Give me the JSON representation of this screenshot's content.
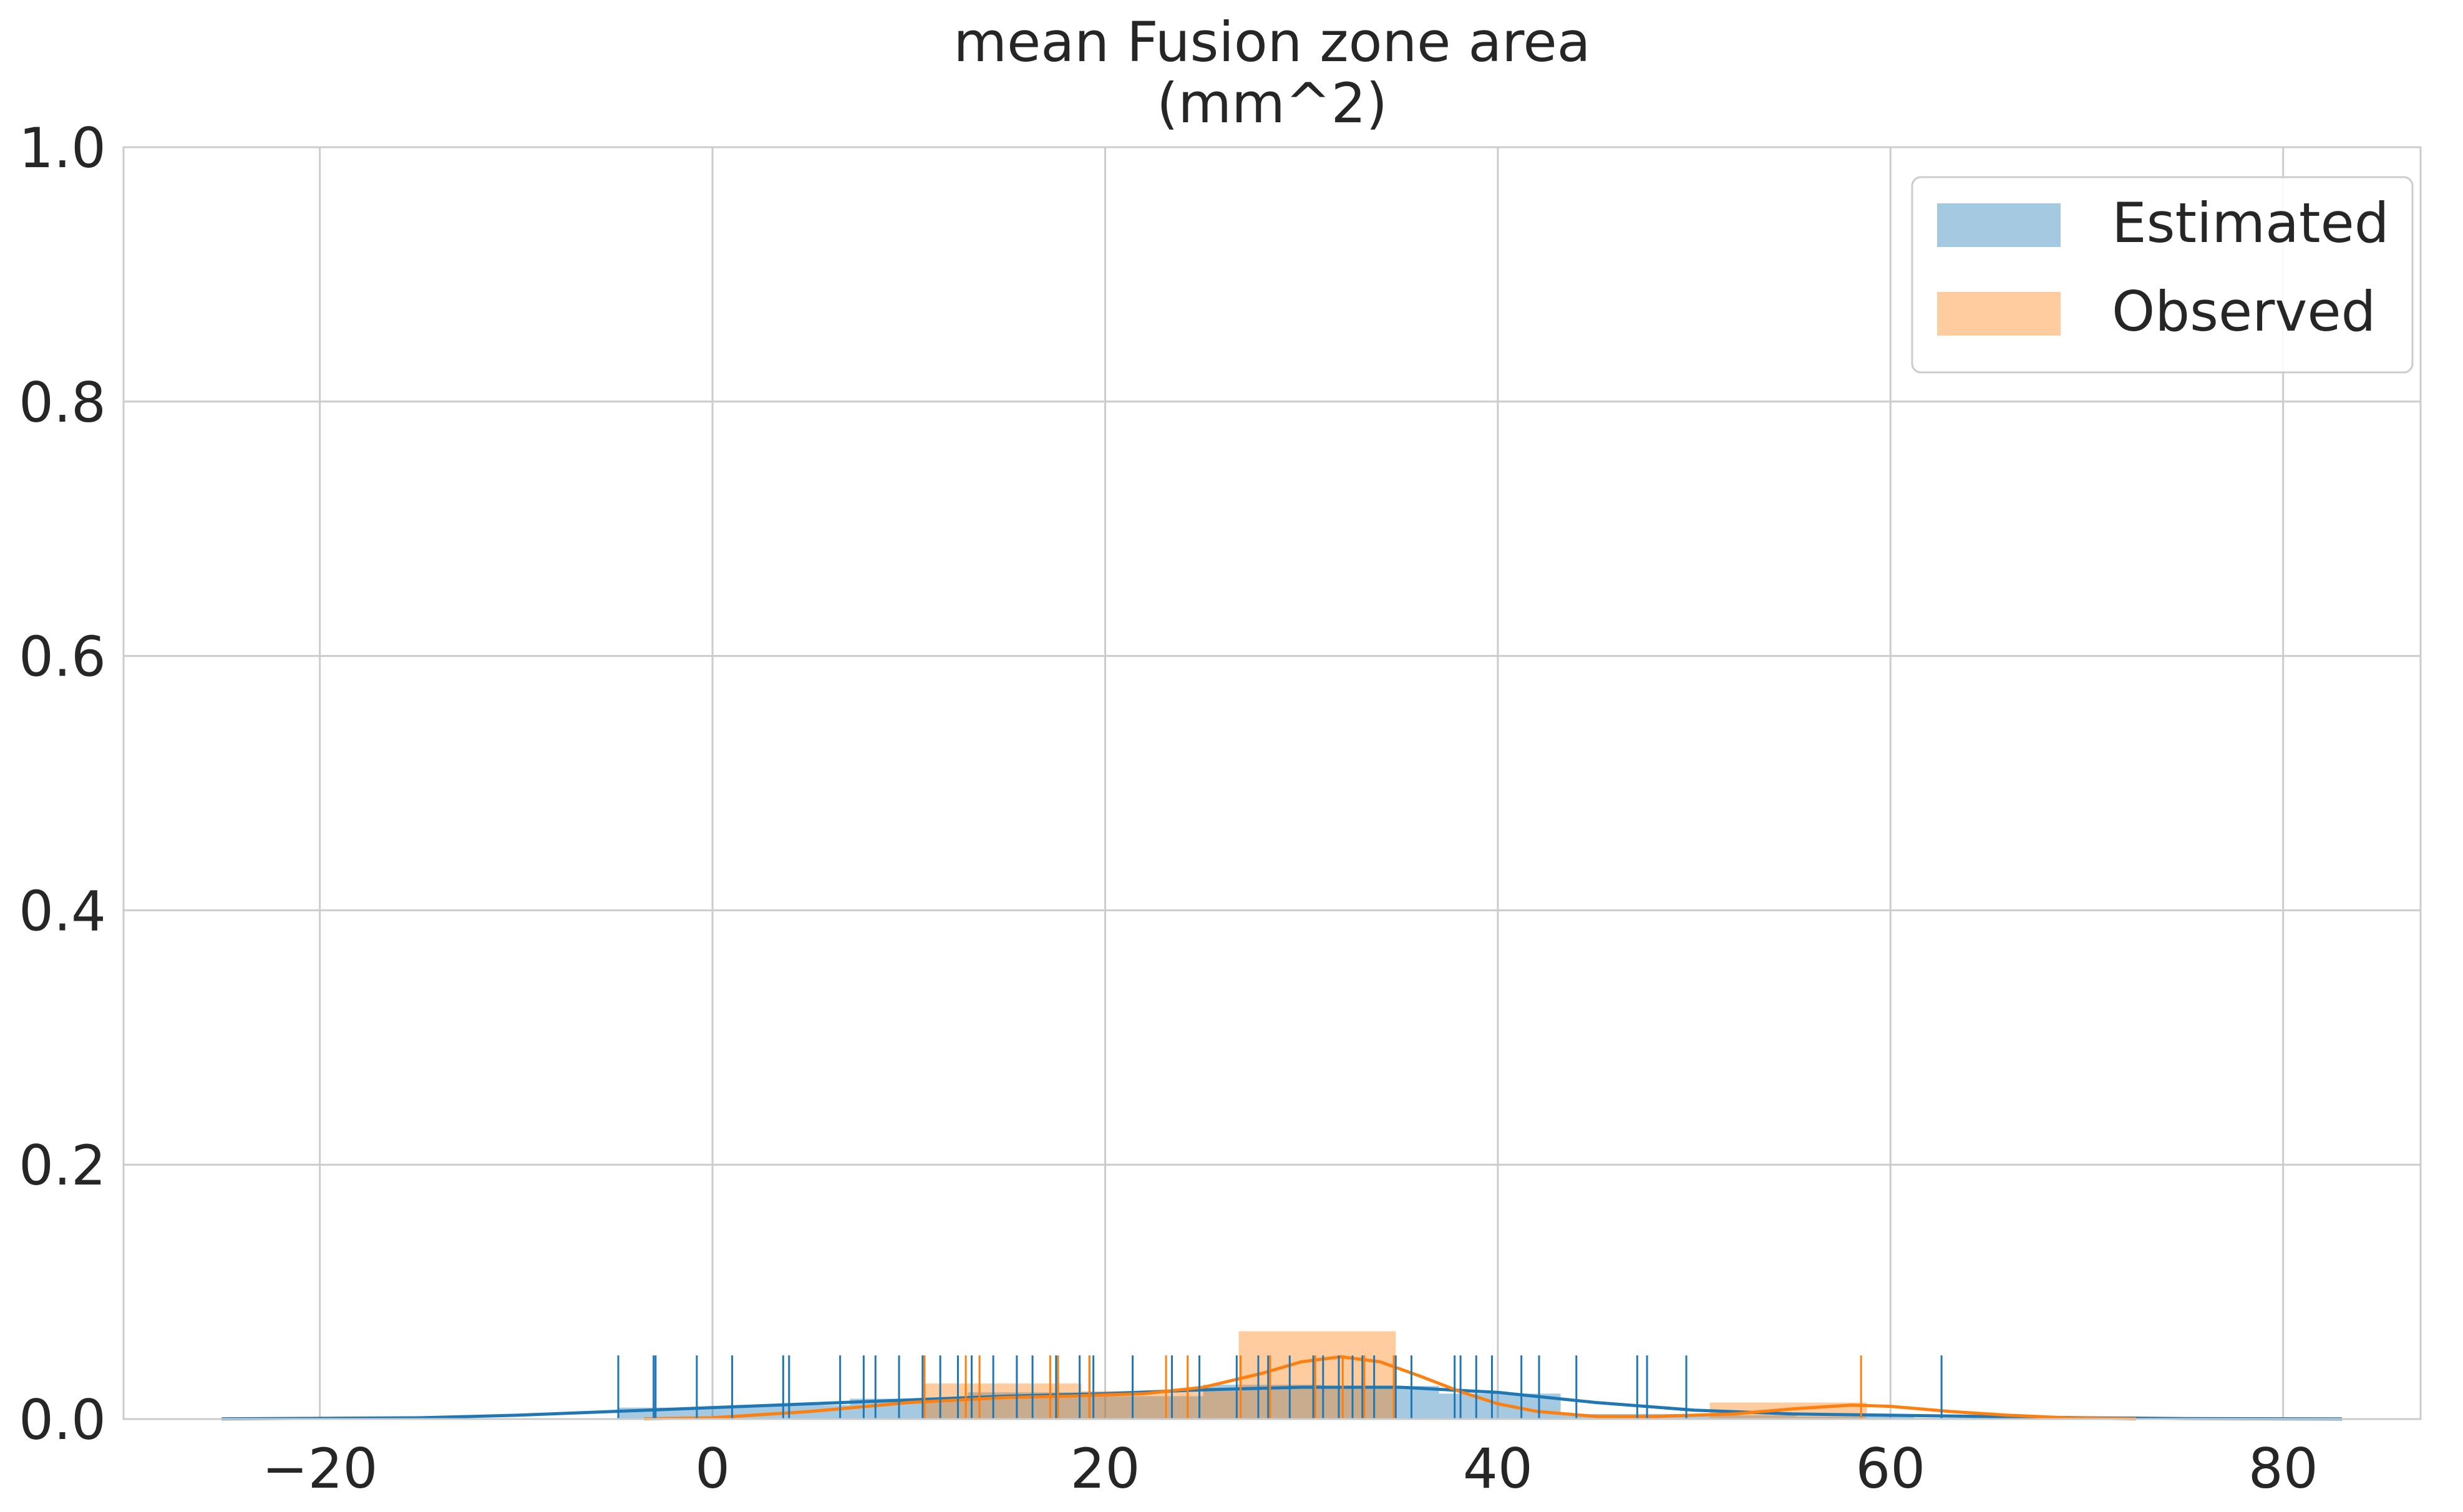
{
  "chart_data": {
    "type": "histogram",
    "title": "mean Fusion zone area\n(mm^2)",
    "xlabel": "",
    "ylabel": "",
    "xlim": [
      -30,
      87
    ],
    "ylim": [
      0,
      1.0
    ],
    "x_ticks": [
      -20,
      0,
      20,
      40,
      60,
      80
    ],
    "x_tick_labels": [
      "−20",
      "0",
      "20",
      "40",
      "60",
      "80"
    ],
    "y_ticks": [
      0.0,
      0.2,
      0.4,
      0.6,
      0.8,
      1.0
    ],
    "y_tick_labels": [
      "0.0",
      "0.2",
      "0.4",
      "0.6",
      "0.8",
      "1.0"
    ],
    "grid": true,
    "legend_position": "top-right",
    "legend": [
      "Estimated",
      "Observed"
    ],
    "series": [
      {
        "name": "Estimated",
        "color": "#1f77b4",
        "hist_bins": [
          {
            "x0": -4.8,
            "x1": 1.2,
            "density": 0.009
          },
          {
            "x0": 1.2,
            "x1": 7.0,
            "density": 0.011
          },
          {
            "x0": 7.0,
            "x1": 13.0,
            "density": 0.016
          },
          {
            "x0": 13.0,
            "x1": 19.0,
            "density": 0.021
          },
          {
            "x0": 19.0,
            "x1": 25.0,
            "density": 0.018
          },
          {
            "x0": 25.0,
            "x1": 31.0,
            "density": 0.027
          },
          {
            "x0": 31.0,
            "x1": 37.0,
            "density": 0.026
          },
          {
            "x0": 37.0,
            "x1": 43.2,
            "density": 0.02
          },
          {
            "x0": 43.2,
            "x1": 49.2,
            "density": 0.004
          },
          {
            "x0": 49.2,
            "x1": 55.2,
            "density": 0.003
          },
          {
            "x0": 55.2,
            "x1": 61.2,
            "density": 0.002
          },
          {
            "x0": 61.2,
            "x1": 67.2,
            "density": 0.001
          }
        ],
        "kde": {
          "x": [
            -25,
            -15,
            -10,
            -5,
            0,
            5,
            10,
            15,
            20,
            25,
            30,
            35,
            40,
            45,
            50,
            55,
            60,
            65,
            70,
            75,
            83
          ],
          "y": [
            0.0002,
            0.001,
            0.003,
            0.006,
            0.009,
            0.012,
            0.015,
            0.018,
            0.02,
            0.023,
            0.025,
            0.025,
            0.021,
            0.013,
            0.007,
            0.004,
            0.003,
            0.002,
            0.001,
            0.0004,
            0.0001
          ]
        },
        "rug": [
          -4.8,
          -3.0,
          -2.9,
          -0.8,
          1.0,
          3.6,
          3.9,
          6.5,
          7.7,
          8.3,
          9.5,
          10.7,
          11.6,
          12.5,
          13.2,
          14.3,
          15.5,
          16.3,
          17.5,
          18.7,
          19.2,
          19.4,
          21.4,
          23.4,
          24.8,
          26.7,
          27.8,
          28.3,
          29.4,
          30.6,
          31.1,
          31.9,
          32.6,
          33.1,
          33.7,
          34.8,
          35.6,
          37.8,
          38.1,
          38.9,
          39.7,
          41.2,
          42.1,
          44.0,
          47.1,
          47.6,
          49.6,
          62.6
        ]
      },
      {
        "name": "Observed",
        "color": "#ff7f0e",
        "hist_bins": [
          {
            "x0": 10.8,
            "x1": 18.8,
            "density": 0.028
          },
          {
            "x0": 18.8,
            "x1": 26.8,
            "density": 0.022
          },
          {
            "x0": 26.8,
            "x1": 34.8,
            "density": 0.069
          },
          {
            "x0": 34.8,
            "x1": 42.8,
            "density": 0.0
          },
          {
            "x0": 42.8,
            "x1": 50.8,
            "density": 0.0
          },
          {
            "x0": 50.8,
            "x1": 58.8,
            "density": 0.013
          }
        ],
        "kde": {
          "x": [
            -3.5,
            0,
            5,
            10,
            15,
            18,
            22,
            25,
            28,
            30,
            32,
            34,
            36,
            38,
            40,
            42,
            45,
            48,
            52,
            55,
            58,
            60,
            63,
            66,
            69,
            72.5
          ],
          "y": [
            0.0002,
            0.001,
            0.006,
            0.013,
            0.017,
            0.018,
            0.02,
            0.025,
            0.036,
            0.045,
            0.049,
            0.045,
            0.034,
            0.022,
            0.012,
            0.006,
            0.002,
            0.002,
            0.004,
            0.008,
            0.011,
            0.01,
            0.006,
            0.003,
            0.001,
            0.0002
          ]
        },
        "rug": [
          10.8,
          12.9,
          13.6,
          17.2,
          17.6,
          19.2,
          23.1,
          24.2,
          26.9,
          28.4,
          30.7,
          32.1,
          33.2,
          34.7,
          58.5
        ]
      }
    ]
  }
}
